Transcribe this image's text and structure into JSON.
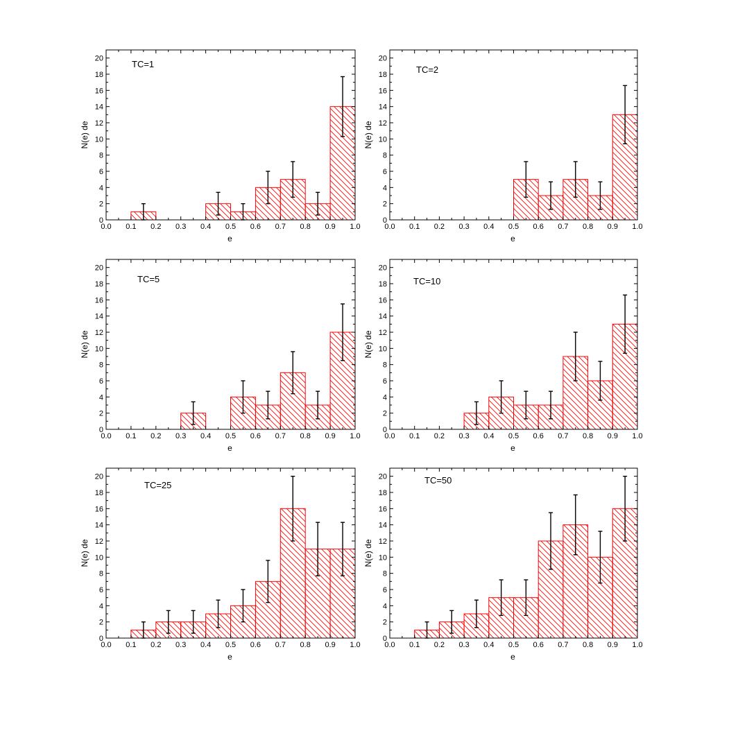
{
  "colors": {
    "bar": "#ff0000",
    "errorbar": "#000000",
    "axes": "#000000"
  },
  "chart_data": [
    {
      "type": "bar",
      "label": "TC=1",
      "xlabel": "e",
      "ylabel": "N(e) de",
      "xlim": [
        0,
        1
      ],
      "ylim": [
        0,
        21
      ],
      "xticks": [
        "0.0",
        "0.1",
        "0.2",
        "0.3",
        "0.4",
        "0.5",
        "0.6",
        "0.7",
        "0.8",
        "0.9",
        "1.0"
      ],
      "yticks": [
        "0",
        "2",
        "4",
        "6",
        "8",
        "10",
        "12",
        "14",
        "16",
        "18",
        "20"
      ],
      "bin_width": 0.1,
      "bars": [
        {
          "x": 0.15,
          "value": 1,
          "err_low": 0,
          "err_high": 2
        },
        {
          "x": 0.45,
          "value": 2,
          "err_low": 0.6,
          "err_high": 3.4
        },
        {
          "x": 0.55,
          "value": 1,
          "err_low": 0,
          "err_high": 2
        },
        {
          "x": 0.65,
          "value": 4,
          "err_low": 2,
          "err_high": 6
        },
        {
          "x": 0.75,
          "value": 5,
          "err_low": 2.8,
          "err_high": 7.2
        },
        {
          "x": 0.85,
          "value": 2,
          "err_low": 0.6,
          "err_high": 3.4
        },
        {
          "x": 0.95,
          "value": 14,
          "err_low": 10.3,
          "err_high": 17.7
        }
      ]
    },
    {
      "type": "bar",
      "label": "TC=2",
      "xlabel": "e",
      "ylabel": "N(e) de",
      "xlim": [
        0,
        1
      ],
      "ylim": [
        0,
        21
      ],
      "xticks": [
        "0.0",
        "0.1",
        "0.2",
        "0.3",
        "0.4",
        "0.5",
        "0.6",
        "0.7",
        "0.8",
        "0.9",
        "1.0"
      ],
      "yticks": [
        "0",
        "2",
        "4",
        "6",
        "8",
        "10",
        "12",
        "14",
        "16",
        "18",
        "20"
      ],
      "bin_width": 0.1,
      "bars": [
        {
          "x": 0.55,
          "value": 5,
          "err_low": 2.8,
          "err_high": 7.2
        },
        {
          "x": 0.65,
          "value": 3,
          "err_low": 1.3,
          "err_high": 4.7
        },
        {
          "x": 0.75,
          "value": 5,
          "err_low": 2.8,
          "err_high": 7.2
        },
        {
          "x": 0.85,
          "value": 3,
          "err_low": 1.3,
          "err_high": 4.7
        },
        {
          "x": 0.95,
          "value": 13,
          "err_low": 9.4,
          "err_high": 16.6
        }
      ]
    },
    {
      "type": "bar",
      "label": "TC=5",
      "xlabel": "e",
      "ylabel": "N(e) de",
      "xlim": [
        0,
        1
      ],
      "ylim": [
        0,
        21
      ],
      "xticks": [
        "0.0",
        "0.1",
        "0.2",
        "0.3",
        "0.4",
        "0.5",
        "0.6",
        "0.7",
        "0.8",
        "0.9",
        "1.0"
      ],
      "yticks": [
        "0",
        "2",
        "4",
        "6",
        "8",
        "10",
        "12",
        "14",
        "16",
        "18",
        "20"
      ],
      "bin_width": 0.1,
      "bars": [
        {
          "x": 0.35,
          "value": 2,
          "err_low": 0.6,
          "err_high": 3.4
        },
        {
          "x": 0.55,
          "value": 4,
          "err_low": 2,
          "err_high": 6
        },
        {
          "x": 0.65,
          "value": 3,
          "err_low": 1.3,
          "err_high": 4.7
        },
        {
          "x": 0.75,
          "value": 7,
          "err_low": 4.4,
          "err_high": 9.6
        },
        {
          "x": 0.85,
          "value": 3,
          "err_low": 1.3,
          "err_high": 4.7
        },
        {
          "x": 0.95,
          "value": 12,
          "err_low": 8.5,
          "err_high": 15.5
        }
      ]
    },
    {
      "type": "bar",
      "label": "TC=10",
      "xlabel": "e",
      "ylabel": "N(e) de",
      "xlim": [
        0,
        1
      ],
      "ylim": [
        0,
        21
      ],
      "xticks": [
        "0.0",
        "0.1",
        "0.2",
        "0.3",
        "0.4",
        "0.5",
        "0.6",
        "0.7",
        "0.8",
        "0.9",
        "1.0"
      ],
      "yticks": [
        "0",
        "2",
        "4",
        "6",
        "8",
        "10",
        "12",
        "14",
        "16",
        "18",
        "20"
      ],
      "bin_width": 0.1,
      "bars": [
        {
          "x": 0.35,
          "value": 2,
          "err_low": 0.6,
          "err_high": 3.4
        },
        {
          "x": 0.45,
          "value": 4,
          "err_low": 2,
          "err_high": 6
        },
        {
          "x": 0.55,
          "value": 3,
          "err_low": 1.3,
          "err_high": 4.7
        },
        {
          "x": 0.65,
          "value": 3,
          "err_low": 1.3,
          "err_high": 4.7
        },
        {
          "x": 0.75,
          "value": 9,
          "err_low": 6,
          "err_high": 12
        },
        {
          "x": 0.85,
          "value": 6,
          "err_low": 3.6,
          "err_high": 8.4
        },
        {
          "x": 0.95,
          "value": 13,
          "err_low": 9.4,
          "err_high": 16.6
        }
      ]
    },
    {
      "type": "bar",
      "label": "TC=25",
      "xlabel": "e",
      "ylabel": "N(e) de",
      "xlim": [
        0,
        1
      ],
      "ylim": [
        0,
        21
      ],
      "xticks": [
        "0.0",
        "0.1",
        "0.2",
        "0.3",
        "0.4",
        "0.5",
        "0.6",
        "0.7",
        "0.8",
        "0.9",
        "1.0"
      ],
      "yticks": [
        "0",
        "2",
        "4",
        "6",
        "8",
        "10",
        "12",
        "14",
        "16",
        "18",
        "20"
      ],
      "bin_width": 0.1,
      "bars": [
        {
          "x": 0.15,
          "value": 1,
          "err_low": 0,
          "err_high": 2
        },
        {
          "x": 0.25,
          "value": 2,
          "err_low": 0.6,
          "err_high": 3.4
        },
        {
          "x": 0.35,
          "value": 2,
          "err_low": 0.6,
          "err_high": 3.4
        },
        {
          "x": 0.45,
          "value": 3,
          "err_low": 1.3,
          "err_high": 4.7
        },
        {
          "x": 0.55,
          "value": 4,
          "err_low": 2,
          "err_high": 6
        },
        {
          "x": 0.65,
          "value": 7,
          "err_low": 4.4,
          "err_high": 9.6
        },
        {
          "x": 0.75,
          "value": 16,
          "err_low": 12,
          "err_high": 20
        },
        {
          "x": 0.85,
          "value": 11,
          "err_low": 7.7,
          "err_high": 14.3
        },
        {
          "x": 0.95,
          "value": 11,
          "err_low": 7.7,
          "err_high": 14.3
        }
      ]
    },
    {
      "type": "bar",
      "label": "TC=50",
      "xlabel": "e",
      "ylabel": "N(e) de",
      "xlim": [
        0,
        1
      ],
      "ylim": [
        0,
        21
      ],
      "xticks": [
        "0.0",
        "0.1",
        "0.2",
        "0.3",
        "0.4",
        "0.5",
        "0.6",
        "0.7",
        "0.8",
        "0.9",
        "1.0"
      ],
      "yticks": [
        "0",
        "2",
        "4",
        "6",
        "8",
        "10",
        "12",
        "14",
        "16",
        "18",
        "20"
      ],
      "bin_width": 0.1,
      "bars": [
        {
          "x": 0.15,
          "value": 1,
          "err_low": 0,
          "err_high": 2
        },
        {
          "x": 0.25,
          "value": 2,
          "err_low": 0.6,
          "err_high": 3.4
        },
        {
          "x": 0.35,
          "value": 3,
          "err_low": 1.3,
          "err_high": 4.7
        },
        {
          "x": 0.45,
          "value": 5,
          "err_low": 2.8,
          "err_high": 7.2
        },
        {
          "x": 0.55,
          "value": 5,
          "err_low": 2.8,
          "err_high": 7.2
        },
        {
          "x": 0.65,
          "value": 12,
          "err_low": 8.5,
          "err_high": 15.5
        },
        {
          "x": 0.75,
          "value": 14,
          "err_low": 10.3,
          "err_high": 17.7
        },
        {
          "x": 0.85,
          "value": 10,
          "err_low": 6.8,
          "err_high": 13.2
        },
        {
          "x": 0.95,
          "value": 16,
          "err_low": 12,
          "err_high": 20
        }
      ]
    }
  ]
}
